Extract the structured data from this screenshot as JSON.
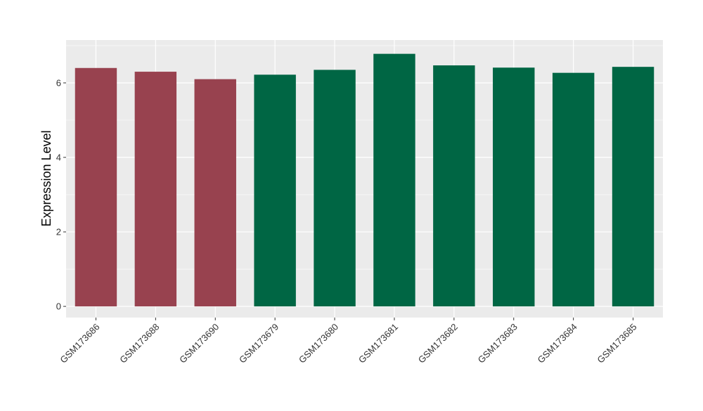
{
  "chart_data": {
    "type": "bar",
    "title": "",
    "xlabel": "",
    "ylabel": "Expression Level",
    "ylim": [
      -0.3,
      7.15
    ],
    "yticks": [
      0,
      2,
      4,
      6
    ],
    "grid": true,
    "legend": "none",
    "categories": [
      "GSM173686",
      "GSM173688",
      "GSM173690",
      "GSM173679",
      "GSM173680",
      "GSM173681",
      "GSM173682",
      "GSM173683",
      "GSM173684",
      "GSM173685"
    ],
    "values": [
      6.4,
      6.3,
      6.1,
      6.22,
      6.35,
      6.78,
      6.47,
      6.41,
      6.27,
      6.43
    ],
    "groups": [
      "a",
      "a",
      "a",
      "b",
      "b",
      "b",
      "b",
      "b",
      "b",
      "b"
    ],
    "colors": {
      "a": "#98424f",
      "b": "#006644"
    },
    "panel_background": "#ebebeb",
    "gridline_color": "#ffffff"
  }
}
